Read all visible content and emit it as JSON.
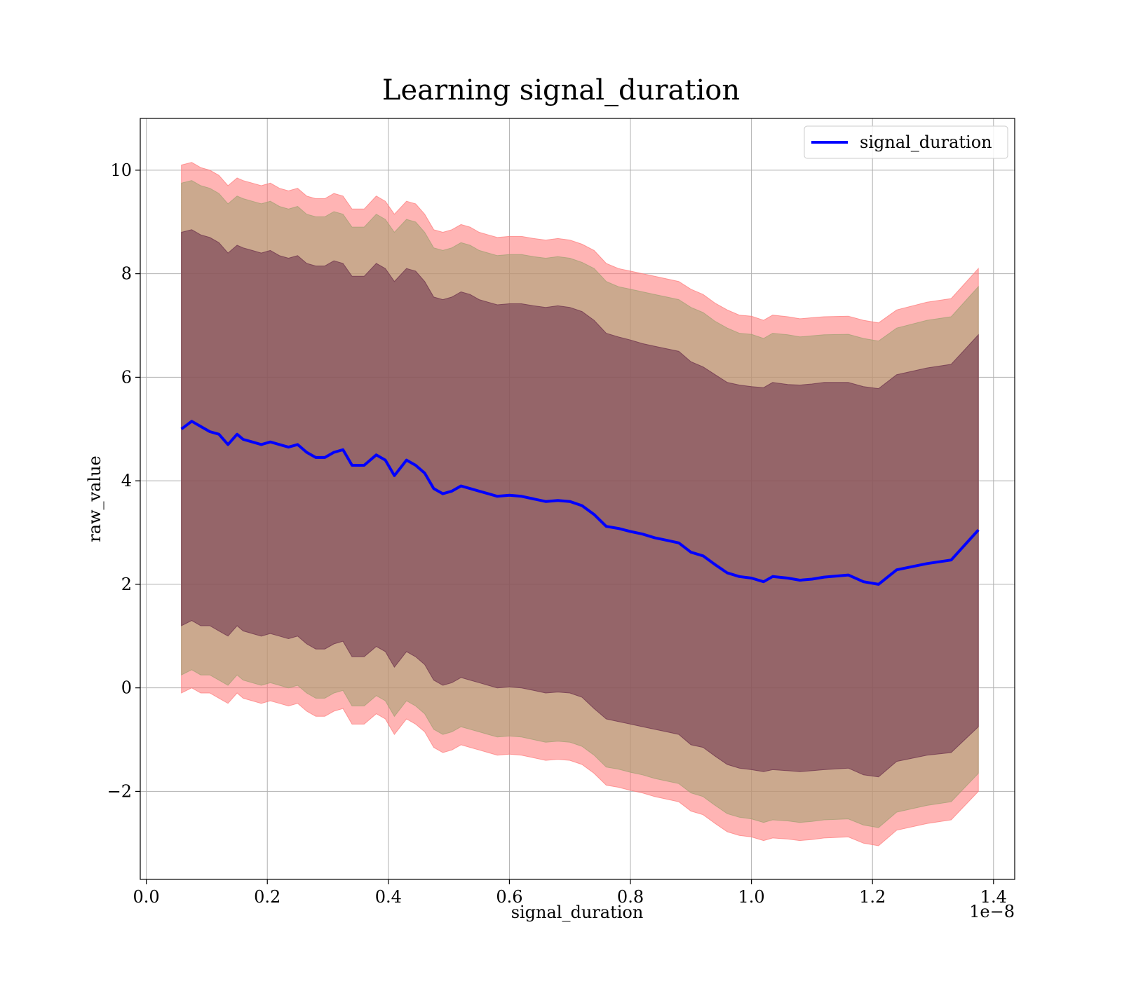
{
  "chart_data": {
    "type": "area",
    "title": "Learning signal_duration",
    "xlabel": "signal_duration",
    "ylabel": "raw_value",
    "x_offset_label": "1e−8",
    "x_scale": 1e-08,
    "xlim": [
      -0.01,
      1.435
    ],
    "ylim": [
      -3.7,
      11.0
    ],
    "x_ticks": [
      0.0,
      0.2,
      0.4,
      0.6,
      0.8,
      1.0,
      1.2,
      1.4
    ],
    "x_tick_labels": [
      "0.0",
      "0.2",
      "0.4",
      "0.6",
      "0.8",
      "1.0",
      "1.2",
      "1.4"
    ],
    "y_ticks": [
      -2,
      0,
      2,
      4,
      6,
      8,
      10
    ],
    "y_tick_labels": [
      "−2",
      "0",
      "2",
      "4",
      "6",
      "8",
      "10"
    ],
    "grid": true,
    "legend_position": "top-right",
    "x": [
      0.058,
      0.075,
      0.09,
      0.105,
      0.12,
      0.135,
      0.15,
      0.16,
      0.175,
      0.19,
      0.205,
      0.22,
      0.235,
      0.25,
      0.265,
      0.28,
      0.295,
      0.31,
      0.325,
      0.34,
      0.36,
      0.38,
      0.395,
      0.41,
      0.43,
      0.445,
      0.46,
      0.475,
      0.49,
      0.505,
      0.52,
      0.535,
      0.55,
      0.565,
      0.58,
      0.6,
      0.62,
      0.64,
      0.66,
      0.68,
      0.7,
      0.72,
      0.74,
      0.76,
      0.78,
      0.8,
      0.82,
      0.84,
      0.86,
      0.88,
      0.9,
      0.92,
      0.94,
      0.96,
      0.98,
      1.0,
      1.02,
      1.035,
      1.06,
      1.08,
      1.1,
      1.12,
      1.16,
      1.185,
      1.21,
      1.24,
      1.29,
      1.33,
      1.375
    ],
    "series": [
      {
        "name": "signal_duration",
        "color": "#0000ff",
        "values": [
          5.0,
          5.15,
          5.05,
          4.95,
          4.9,
          4.7,
          4.9,
          4.8,
          4.75,
          4.7,
          4.75,
          4.7,
          4.65,
          4.7,
          4.55,
          4.45,
          4.45,
          4.55,
          4.6,
          4.3,
          4.3,
          4.5,
          4.4,
          4.1,
          4.4,
          4.3,
          4.15,
          3.85,
          3.75,
          3.8,
          3.9,
          3.85,
          3.8,
          3.75,
          3.7,
          3.72,
          3.7,
          3.65,
          3.6,
          3.62,
          3.6,
          3.52,
          3.35,
          3.12,
          3.08,
          3.02,
          2.97,
          2.9,
          2.85,
          2.8,
          2.62,
          2.55,
          2.38,
          2.22,
          2.15,
          2.12,
          2.05,
          2.15,
          2.12,
          2.08,
          2.1,
          2.14,
          2.18,
          2.05,
          2.0,
          2.28,
          2.4,
          2.47,
          3.05
        ]
      }
    ],
    "bands": [
      {
        "name": "outer",
        "color": "#ff7777",
        "upper": [
          10.1,
          10.15,
          10.05,
          10.0,
          9.9,
          9.7,
          9.85,
          9.8,
          9.75,
          9.7,
          9.75,
          9.65,
          9.6,
          9.65,
          9.5,
          9.45,
          9.45,
          9.55,
          9.5,
          9.25,
          9.25,
          9.5,
          9.4,
          9.15,
          9.4,
          9.35,
          9.15,
          8.85,
          8.8,
          8.85,
          8.95,
          8.9,
          8.8,
          8.75,
          8.7,
          8.72,
          8.72,
          8.68,
          8.65,
          8.68,
          8.65,
          8.57,
          8.45,
          8.2,
          8.1,
          8.05,
          8.0,
          7.95,
          7.9,
          7.85,
          7.7,
          7.6,
          7.43,
          7.3,
          7.2,
          7.18,
          7.1,
          7.2,
          7.17,
          7.13,
          7.15,
          7.17,
          7.18,
          7.1,
          7.05,
          7.3,
          7.45,
          7.52,
          8.1
        ],
        "lower": [
          -0.1,
          0.0,
          -0.1,
          -0.1,
          -0.2,
          -0.3,
          -0.1,
          -0.2,
          -0.25,
          -0.3,
          -0.25,
          -0.3,
          -0.35,
          -0.3,
          -0.45,
          -0.55,
          -0.55,
          -0.45,
          -0.4,
          -0.7,
          -0.7,
          -0.5,
          -0.6,
          -0.9,
          -0.6,
          -0.7,
          -0.85,
          -1.15,
          -1.25,
          -1.2,
          -1.1,
          -1.15,
          -1.2,
          -1.25,
          -1.3,
          -1.28,
          -1.3,
          -1.35,
          -1.4,
          -1.38,
          -1.4,
          -1.48,
          -1.65,
          -1.88,
          -1.92,
          -1.98,
          -2.03,
          -2.1,
          -2.15,
          -2.2,
          -2.38,
          -2.45,
          -2.62,
          -2.78,
          -2.85,
          -2.88,
          -2.95,
          -2.9,
          -2.92,
          -2.95,
          -2.93,
          -2.9,
          -2.88,
          -3.0,
          -3.05,
          -2.75,
          -2.62,
          -2.55,
          -2.0
        ]
      },
      {
        "name": "middle",
        "color": "#a0a070",
        "upper": [
          9.75,
          9.8,
          9.7,
          9.65,
          9.55,
          9.35,
          9.5,
          9.45,
          9.4,
          9.35,
          9.4,
          9.3,
          9.25,
          9.3,
          9.15,
          9.1,
          9.1,
          9.2,
          9.15,
          8.9,
          8.9,
          9.15,
          9.05,
          8.8,
          9.05,
          9.0,
          8.8,
          8.5,
          8.45,
          8.5,
          8.6,
          8.55,
          8.45,
          8.4,
          8.35,
          8.37,
          8.37,
          8.33,
          8.3,
          8.33,
          8.3,
          8.22,
          8.1,
          7.85,
          7.75,
          7.7,
          7.65,
          7.6,
          7.55,
          7.5,
          7.35,
          7.25,
          7.08,
          6.95,
          6.85,
          6.83,
          6.75,
          6.85,
          6.82,
          6.78,
          6.8,
          6.82,
          6.83,
          6.75,
          6.7,
          6.95,
          7.1,
          7.17,
          7.75
        ],
        "lower": [
          0.25,
          0.35,
          0.25,
          0.25,
          0.15,
          0.05,
          0.25,
          0.15,
          0.1,
          0.05,
          0.1,
          0.05,
          0.0,
          0.05,
          -0.1,
          -0.2,
          -0.2,
          -0.1,
          -0.05,
          -0.35,
          -0.35,
          -0.15,
          -0.25,
          -0.55,
          -0.25,
          -0.35,
          -0.5,
          -0.8,
          -0.9,
          -0.85,
          -0.75,
          -0.8,
          -0.85,
          -0.9,
          -0.95,
          -0.93,
          -0.95,
          -1.0,
          -1.05,
          -1.03,
          -1.05,
          -1.13,
          -1.3,
          -1.53,
          -1.57,
          -1.63,
          -1.68,
          -1.75,
          -1.8,
          -1.85,
          -2.03,
          -2.1,
          -2.27,
          -2.43,
          -2.5,
          -2.53,
          -2.6,
          -2.55,
          -2.57,
          -2.6,
          -2.58,
          -2.55,
          -2.53,
          -2.65,
          -2.7,
          -2.4,
          -2.27,
          -2.2,
          -1.65
        ]
      },
      {
        "name": "inner",
        "color": "#6a2d4a",
        "upper": [
          8.8,
          8.85,
          8.75,
          8.7,
          8.6,
          8.4,
          8.55,
          8.5,
          8.45,
          8.4,
          8.45,
          8.35,
          8.3,
          8.35,
          8.2,
          8.15,
          8.15,
          8.25,
          8.2,
          7.95,
          7.95,
          8.2,
          8.1,
          7.85,
          8.1,
          8.05,
          7.85,
          7.55,
          7.5,
          7.55,
          7.65,
          7.6,
          7.5,
          7.45,
          7.4,
          7.42,
          7.42,
          7.38,
          7.35,
          7.38,
          7.35,
          7.27,
          7.1,
          6.85,
          6.78,
          6.72,
          6.65,
          6.6,
          6.55,
          6.5,
          6.3,
          6.2,
          6.05,
          5.9,
          5.85,
          5.82,
          5.8,
          5.9,
          5.86,
          5.85,
          5.87,
          5.9,
          5.9,
          5.82,
          5.78,
          6.05,
          6.18,
          6.25,
          6.82
        ],
        "lower": [
          1.2,
          1.3,
          1.2,
          1.2,
          1.1,
          1.0,
          1.2,
          1.1,
          1.05,
          1.0,
          1.05,
          1.0,
          0.95,
          1.0,
          0.85,
          0.75,
          0.75,
          0.85,
          0.9,
          0.6,
          0.6,
          0.8,
          0.7,
          0.4,
          0.7,
          0.6,
          0.45,
          0.15,
          0.05,
          0.1,
          0.2,
          0.15,
          0.1,
          0.05,
          0.0,
          0.02,
          0.0,
          -0.05,
          -0.1,
          -0.08,
          -0.1,
          -0.18,
          -0.4,
          -0.6,
          -0.65,
          -0.7,
          -0.75,
          -0.8,
          -0.85,
          -0.9,
          -1.1,
          -1.15,
          -1.32,
          -1.48,
          -1.55,
          -1.58,
          -1.62,
          -1.58,
          -1.6,
          -1.62,
          -1.6,
          -1.58,
          -1.55,
          -1.68,
          -1.72,
          -1.42,
          -1.3,
          -1.25,
          -0.75
        ]
      }
    ]
  }
}
